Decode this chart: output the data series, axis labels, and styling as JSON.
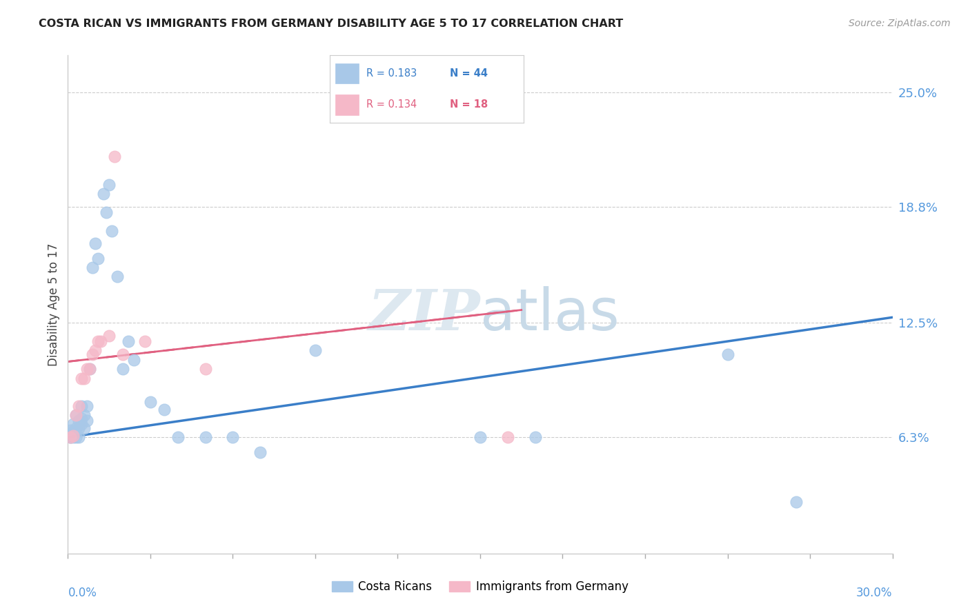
{
  "title": "COSTA RICAN VS IMMIGRANTS FROM GERMANY DISABILITY AGE 5 TO 17 CORRELATION CHART",
  "source": "Source: ZipAtlas.com",
  "ylabel": "Disability Age 5 to 17",
  "ytick_labels": [
    "25.0%",
    "18.8%",
    "12.5%",
    "6.3%"
  ],
  "ytick_values": [
    0.25,
    0.188,
    0.125,
    0.063
  ],
  "xmin": 0.0,
  "xmax": 0.3,
  "ymin": 0.0,
  "ymax": 0.27,
  "watermark_zip": "ZIP",
  "watermark_atlas": "atlas",
  "costa_rican_color": "#a8c8e8",
  "germany_color": "#f5b8c8",
  "costa_rican_line_color": "#3a7ec8",
  "germany_line_color": "#e06080",
  "background_color": "#ffffff",
  "grid_color": "#cccccc",
  "cr_trend_x0": 0.0,
  "cr_trend_x1": 0.3,
  "cr_trend_y0": 0.063,
  "cr_trend_y1": 0.128,
  "de_trend_x0": 0.0,
  "de_trend_x1": 0.165,
  "de_trend_y0": 0.104,
  "de_trend_y1": 0.132,
  "costa_rican_x": [
    0.001,
    0.001,
    0.001,
    0.001,
    0.002,
    0.002,
    0.002,
    0.002,
    0.003,
    0.003,
    0.003,
    0.004,
    0.004,
    0.004,
    0.005,
    0.005,
    0.005,
    0.006,
    0.006,
    0.007,
    0.007,
    0.008,
    0.009,
    0.01,
    0.011,
    0.013,
    0.014,
    0.015,
    0.016,
    0.018,
    0.02,
    0.022,
    0.024,
    0.03,
    0.035,
    0.04,
    0.05,
    0.06,
    0.07,
    0.09,
    0.15,
    0.17,
    0.24,
    0.265
  ],
  "costa_rican_y": [
    0.063,
    0.063,
    0.065,
    0.067,
    0.063,
    0.064,
    0.066,
    0.07,
    0.063,
    0.068,
    0.075,
    0.063,
    0.068,
    0.072,
    0.07,
    0.073,
    0.08,
    0.068,
    0.075,
    0.072,
    0.08,
    0.1,
    0.155,
    0.168,
    0.16,
    0.195,
    0.185,
    0.2,
    0.175,
    0.15,
    0.1,
    0.115,
    0.105,
    0.082,
    0.078,
    0.063,
    0.063,
    0.063,
    0.055,
    0.11,
    0.063,
    0.063,
    0.108,
    0.028
  ],
  "germany_x": [
    0.001,
    0.002,
    0.003,
    0.004,
    0.005,
    0.006,
    0.007,
    0.008,
    0.009,
    0.01,
    0.011,
    0.012,
    0.015,
    0.017,
    0.02,
    0.028,
    0.05,
    0.16
  ],
  "germany_y": [
    0.063,
    0.064,
    0.075,
    0.08,
    0.095,
    0.095,
    0.1,
    0.1,
    0.108,
    0.11,
    0.115,
    0.115,
    0.118,
    0.215,
    0.108,
    0.115,
    0.1,
    0.063
  ]
}
